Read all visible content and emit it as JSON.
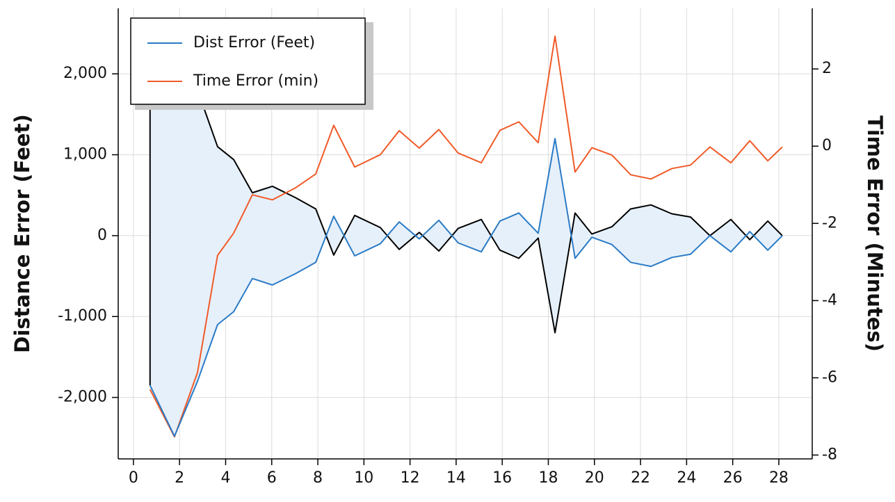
{
  "chart_data": {
    "type": "line",
    "ylabel": "Distance Error (Feet)",
    "y2label": "Time Error (Minutes)",
    "x": [
      0.72,
      1.78,
      2.78,
      3.65,
      4.35,
      5.16,
      6.03,
      7.03,
      7.91,
      8.69,
      9.6,
      10.71,
      11.53,
      12.4,
      13.25,
      14.09,
      15.09,
      15.9,
      16.72,
      17.56,
      18.29,
      19.16,
      19.89,
      20.76,
      21.57,
      22.45,
      23.36,
      24.17,
      25.01,
      25.92,
      26.74,
      27.52,
      28.15
    ],
    "series": [
      {
        "name": "Dist Error (Feet)",
        "color": "#2a7bc6",
        "axis": "y",
        "values": [
          -1850,
          -2480,
          -1800,
          -1100,
          -940,
          -530,
          -610,
          -470,
          -330,
          240,
          -250,
          -100,
          170,
          -40,
          190,
          -90,
          -200,
          180,
          280,
          30,
          1200,
          -280,
          -20,
          -110,
          -330,
          -380,
          -270,
          -230,
          0,
          -200,
          50,
          -180,
          0
        ]
      },
      {
        "name": "Time Error (min)",
        "color": "#f05a28",
        "axis": "y2",
        "values": [
          -6.3,
          -7.53,
          -5.86,
          -2.83,
          -2.25,
          -1.26,
          -1.39,
          -1.08,
          -0.72,
          0.54,
          -0.54,
          -0.22,
          0.4,
          -0.05,
          0.43,
          -0.18,
          -0.43,
          0.41,
          0.63,
          0.09,
          2.85,
          -0.67,
          -0.04,
          -0.23,
          -0.74,
          -0.85,
          -0.58,
          -0.49,
          -0.02,
          -0.43,
          0.14,
          -0.38,
          -0.02
        ]
      },
      {
        "color": "#000000",
        "axis": "y",
        "values": [
          1850,
          2480,
          1800,
          1100,
          940,
          530,
          610,
          470,
          330,
          -240,
          250,
          100,
          -170,
          40,
          -190,
          90,
          200,
          -180,
          -280,
          -30,
          -1200,
          280,
          20,
          110,
          330,
          380,
          270,
          230,
          0,
          200,
          -50,
          180,
          0
        ]
      }
    ],
    "fill_color": "#e6f0fa",
    "xlim": [
      -0.66,
      29.45
    ],
    "xticks": [
      0,
      2,
      4,
      6,
      8,
      10,
      12,
      14,
      16,
      18,
      20,
      22,
      24,
      26,
      28
    ],
    "ylim": [
      -2760,
      2810
    ],
    "yticks": [
      {
        "value": -2000,
        "label": "-2,000"
      },
      {
        "value": -1000,
        "label": "-1,000"
      },
      0,
      {
        "value": 1000,
        "label": "1,000"
      },
      {
        "value": 2000,
        "label": "2,000"
      }
    ],
    "y2lim": [
      -8.1,
      3.57
    ],
    "y2ticks": [
      -8,
      -6,
      -4,
      -2,
      0,
      2
    ],
    "grid": true,
    "legend": "upper left"
  }
}
